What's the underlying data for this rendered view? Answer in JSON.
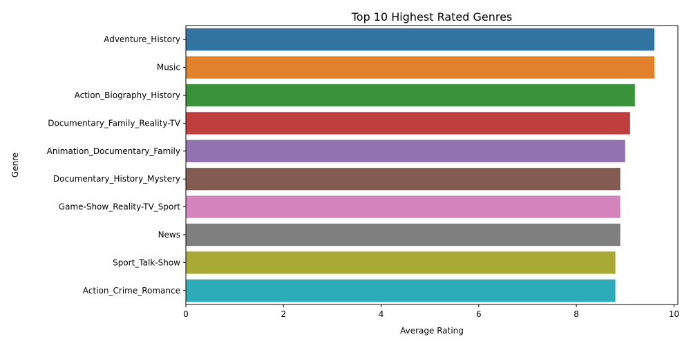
{
  "chart_data": {
    "type": "bar",
    "orientation": "horizontal",
    "title": "Top 10 Highest Rated Genres",
    "xlabel": "Average Rating",
    "ylabel": "Genre",
    "xlim": [
      0,
      10.08
    ],
    "x_ticks": [
      0,
      2,
      4,
      6,
      8,
      10
    ],
    "grid": false,
    "legend": "none",
    "categories": [
      "Adventure_History",
      "Music",
      "Action_Biography_History",
      "Documentary_Family_Reality-TV",
      "Animation_Documentary_Family",
      "Documentary_History_Mystery",
      "Game-Show_Reality-TV_Sport",
      "News",
      "Sport_Talk-Show",
      "Action_Crime_Romance"
    ],
    "values": [
      9.6,
      9.6,
      9.2,
      9.1,
      9.0,
      8.9,
      8.9,
      8.9,
      8.8,
      8.8
    ],
    "colors": [
      "#3274a1",
      "#e1812c",
      "#3a923a",
      "#c03d3e",
      "#9372b2",
      "#845b53",
      "#d684bd",
      "#7f7f7f",
      "#a9aa35",
      "#2eabb8"
    ]
  }
}
